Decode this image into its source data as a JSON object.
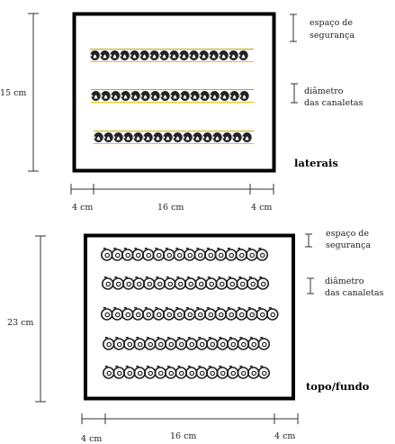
{
  "top_panel": {
    "height_label": "15 cm",
    "widths": {
      "left": "4 cm",
      "middle": "16 cm",
      "right": "4 cm"
    },
    "safety_label_line1": "espaço de",
    "safety_label_line2": "segurança",
    "diameter_label_line1": "diâmetro",
    "diameter_label_line2": "das canaletas",
    "caption": "laterais",
    "channel_count": 3,
    "channel_color": "#222222",
    "channel_underline_color": "#e8c200"
  },
  "bottom_panel": {
    "height_label": "23 cm",
    "widths": {
      "left": "4 cm",
      "middle": "16 cm",
      "right": "4 cm"
    },
    "safety_label_line1": "espaço de",
    "safety_label_line2": "segurança",
    "diameter_label_line1": "diâmetro",
    "diameter_label_line2": "das canaletas",
    "caption": "topo/fundo",
    "channel_count": 5,
    "channel_color": "#222222"
  },
  "colors": {
    "frame": "#000000",
    "line": "#333333"
  }
}
